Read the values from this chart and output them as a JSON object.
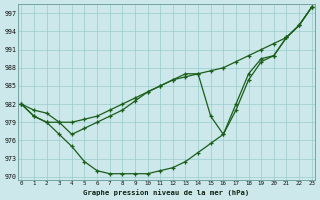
{
  "xlabel": "Graphe pression niveau de la mer (hPa)",
  "bg_color": "#cce8ea",
  "grid_color": "#99cccc",
  "line_color": "#1a5e1a",
  "ylim": [
    969.5,
    998.5
  ],
  "xlim": [
    -0.3,
    23.3
  ],
  "yticks": [
    970,
    973,
    976,
    979,
    982,
    985,
    988,
    991,
    994,
    997
  ],
  "xticks": [
    0,
    1,
    2,
    3,
    4,
    5,
    6,
    7,
    8,
    9,
    10,
    11,
    12,
    13,
    14,
    15,
    16,
    17,
    18,
    19,
    20,
    21,
    22,
    23
  ],
  "straight": [
    982,
    981,
    980.5,
    979,
    979,
    979.5,
    980,
    981,
    982,
    983,
    984,
    985,
    986,
    986.5,
    987,
    987.5,
    988,
    989,
    990,
    991,
    992,
    993,
    995,
    998
  ],
  "upper": [
    982,
    980,
    979,
    979,
    977,
    978,
    979,
    980,
    981,
    982.5,
    984,
    985,
    986,
    987,
    987,
    980,
    977,
    982,
    987,
    989.5,
    990,
    993,
    995,
    998
  ],
  "lower": [
    982,
    980,
    979,
    977,
    975,
    972.5,
    971,
    970.5,
    970.5,
    970.5,
    970.5,
    971,
    971.5,
    972.5,
    974,
    975.5,
    977,
    981,
    986,
    989,
    990,
    993,
    995,
    998
  ]
}
